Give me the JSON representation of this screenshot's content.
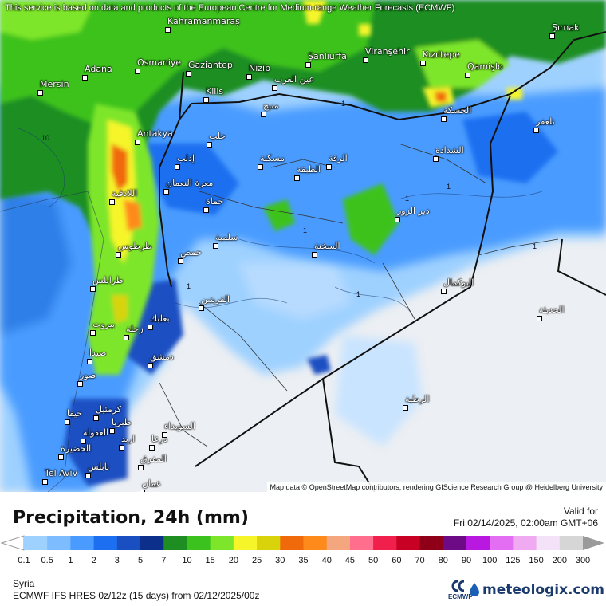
{
  "disclaimer": "This service is based on data and products of the European Centre for Medium-range Weather Forecasts (ECMWF)",
  "attribution": "Map data © OpenStreetMap contributors, rendering GIScience Research Group @ Heidelberg University",
  "legend": {
    "title": "Precipitation, 24h (mm)",
    "valid_label": "Valid for",
    "valid_date": "Fri 02/14/2025, 02:00am GMT+06",
    "region": "Syria",
    "model": "ECMWF IFS HRES 0z/12z (15 days) from  02/12/2025/00z",
    "ecmwf_logo_text": "ECMWF",
    "brand": "meteologix.com",
    "ticks": [
      "0.1",
      "0.5",
      "1",
      "2",
      "3",
      "5",
      "7",
      "10",
      "15",
      "20",
      "25",
      "30",
      "35",
      "40",
      "45",
      "50",
      "60",
      "70",
      "80",
      "90",
      "100",
      "125",
      "150",
      "200",
      "300"
    ],
    "colors": [
      "#9fd1ff",
      "#7cbcff",
      "#4a9bff",
      "#1c6ff0",
      "#1a4fc2",
      "#0b2f8a",
      "#1e8e22",
      "#3cc21f",
      "#7ee62a",
      "#f5f52a",
      "#d9d30c",
      "#f0690a",
      "#ff8a1c",
      "#f4a77f",
      "#ff6f8d",
      "#f01f4b",
      "#c70024",
      "#8f0018",
      "#6d0a86",
      "#b818e0",
      "#e36ef3",
      "#efaaf2",
      "#f4e2f8",
      "#d6d6d6"
    ]
  },
  "cities": [
    {
      "name": "Kahramanmaraş"
    },
    {
      "name": "Şırnak"
    },
    {
      "name": "Osmaniye"
    },
    {
      "name": "Adana"
    },
    {
      "name": "Gaziantep"
    },
    {
      "name": "Nizip"
    },
    {
      "name": "Şanlıurfa"
    },
    {
      "name": "Viranşehir"
    },
    {
      "name": "Kızıltepe"
    },
    {
      "name": "Mersin"
    },
    {
      "name": "Kilis"
    },
    {
      "name": "Qamişlo"
    },
    {
      "name": "Antakya"
    },
    {
      "name": "Tel Aviv"
    },
    {
      "name": "عين العرب"
    },
    {
      "name": "منبج"
    },
    {
      "name": "حلب"
    },
    {
      "name": "مسكنة"
    },
    {
      "name": "إدلب"
    },
    {
      "name": "الطبقة"
    },
    {
      "name": "الرقة"
    },
    {
      "name": "الحسكة"
    },
    {
      "name": "الشدادة"
    },
    {
      "name": "اللاذقية"
    },
    {
      "name": "معرة النعمان"
    },
    {
      "name": "تلعفر"
    },
    {
      "name": "حماة"
    },
    {
      "name": "سلمية"
    },
    {
      "name": "دير الزور"
    },
    {
      "name": "طرطوس"
    },
    {
      "name": "حمص"
    },
    {
      "name": "السخنة"
    },
    {
      "name": "طرابلس"
    },
    {
      "name": "البوكمال"
    },
    {
      "name": "القريتين"
    },
    {
      "name": "بيروت"
    },
    {
      "name": "بعلبك"
    },
    {
      "name": "صيدا"
    },
    {
      "name": "زحلة"
    },
    {
      "name": "دمشق"
    },
    {
      "name": "صور"
    },
    {
      "name": "الرطبة"
    },
    {
      "name": "حيفا"
    },
    {
      "name": "كرمئيل"
    },
    {
      "name": "طبريا"
    },
    {
      "name": "العفولة"
    },
    {
      "name": "السويداء"
    },
    {
      "name": "اربد"
    },
    {
      "name": "درعا"
    },
    {
      "name": "الخضيرة"
    },
    {
      "name": "نابلس"
    },
    {
      "name": "المفرق"
    },
    {
      "name": "عمان"
    },
    {
      "name": "الحديثة"
    }
  ],
  "contour_labels": [
    "10",
    "1",
    "1",
    "1",
    "1",
    "1",
    "1",
    "1"
  ]
}
